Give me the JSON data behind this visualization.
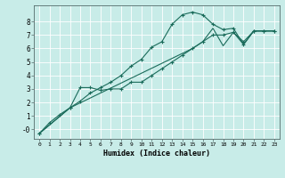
{
  "xlabel": "Humidex (Indice chaleur)",
  "bg_color": "#c8ece8",
  "grid_color": "#ffffff",
  "line_color": "#1a6b5a",
  "xlim": [
    -0.5,
    23.5
  ],
  "ylim": [
    -0.7,
    9.2
  ],
  "yticks": [
    0,
    1,
    2,
    3,
    4,
    5,
    6,
    7,
    8
  ],
  "ytick_labels": [
    "-0",
    "1",
    "2",
    "3",
    "4",
    "5",
    "6",
    "7",
    "8"
  ],
  "xticks": [
    0,
    1,
    2,
    3,
    4,
    5,
    6,
    7,
    8,
    9,
    10,
    11,
    12,
    13,
    14,
    15,
    16,
    17,
    18,
    19,
    20,
    21,
    22,
    23
  ],
  "line1_x": [
    0,
    1,
    2,
    3,
    4,
    5,
    6,
    7,
    8,
    9,
    10,
    11,
    12,
    13,
    14,
    15,
    16,
    17,
    18,
    19,
    20,
    21,
    22,
    23
  ],
  "line1_y": [
    -0.3,
    0.5,
    1.1,
    1.6,
    2.1,
    2.7,
    3.1,
    3.5,
    4.0,
    4.7,
    5.2,
    6.1,
    6.5,
    7.8,
    8.5,
    8.7,
    8.5,
    7.8,
    7.4,
    7.5,
    6.3,
    7.3,
    7.3,
    7.3
  ],
  "line2_x": [
    0,
    3,
    4,
    5,
    6,
    7,
    8,
    9,
    10,
    11,
    12,
    13,
    14,
    15,
    16,
    17,
    18,
    19,
    20,
    21,
    22,
    23
  ],
  "line2_y": [
    -0.3,
    1.6,
    3.1,
    3.1,
    2.9,
    3.0,
    3.0,
    3.5,
    3.5,
    4.0,
    4.5,
    5.0,
    5.5,
    6.0,
    6.5,
    7.0,
    7.0,
    7.2,
    6.5,
    7.3,
    7.3,
    7.3
  ],
  "line3_x": [
    0,
    3,
    15,
    16,
    17,
    18,
    19,
    20,
    21,
    22,
    23
  ],
  "line3_y": [
    -0.3,
    1.6,
    6.0,
    6.5,
    7.5,
    6.2,
    7.2,
    6.3,
    7.3,
    7.3,
    7.3
  ]
}
